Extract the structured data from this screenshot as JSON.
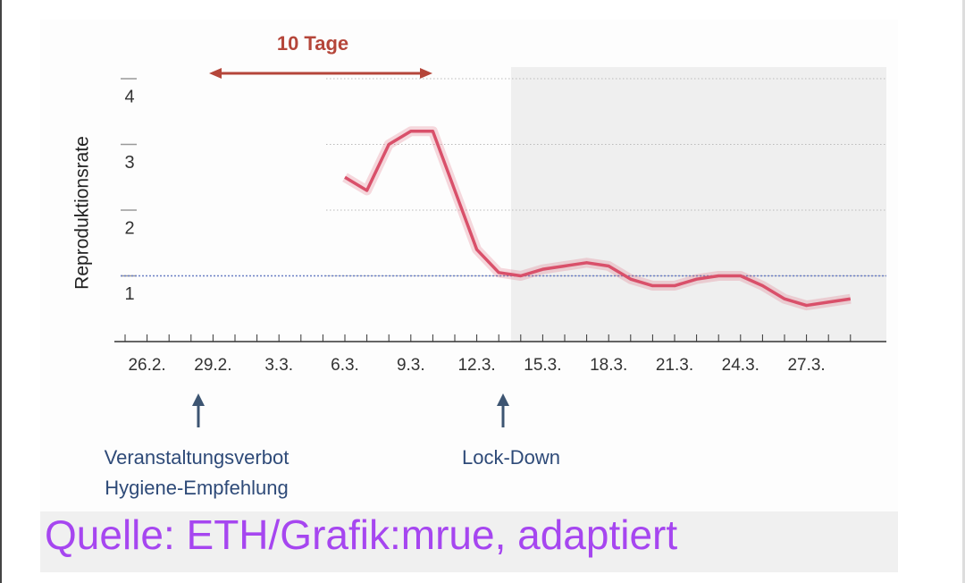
{
  "chart_data": {
    "type": "line",
    "y_label": "Reproduktionsrate",
    "categories": [
      null,
      "26.2.",
      null,
      null,
      "29.2.",
      null,
      null,
      "3.3.",
      null,
      null,
      "6.3.",
      null,
      null,
      "9.3.",
      null,
      null,
      "12.3.",
      null,
      null,
      "15.3.",
      null,
      null,
      "18.3.",
      null,
      null,
      "21.3.",
      null,
      null,
      "24.3.",
      null,
      null,
      "27.3.",
      null,
      null
    ],
    "series": [
      {
        "color": "#d9506a",
        "values": [
          null,
          null,
          null,
          null,
          null,
          null,
          null,
          null,
          null,
          null,
          2.5,
          2.3,
          3.0,
          3.2,
          3.2,
          2.3,
          1.4,
          1.05,
          1.0,
          1.1,
          1.15,
          1.2,
          1.15,
          0.95,
          0.85,
          0.85,
          0.95,
          1.0,
          1.0,
          0.85,
          0.65,
          0.55,
          0.6,
          0.65
        ]
      }
    ],
    "ylim": [
      0,
      4
    ],
    "yticks": [
      1,
      2,
      3,
      4
    ],
    "grid": true,
    "reference_line": 1,
    "annotations": [
      "10 Tage",
      "Veranstaltungsverbot",
      "Hygiene-Empfehlung",
      "Lock-Down"
    ],
    "source": "Quelle: ETH/Grafik:mrue, adaptiert"
  }
}
